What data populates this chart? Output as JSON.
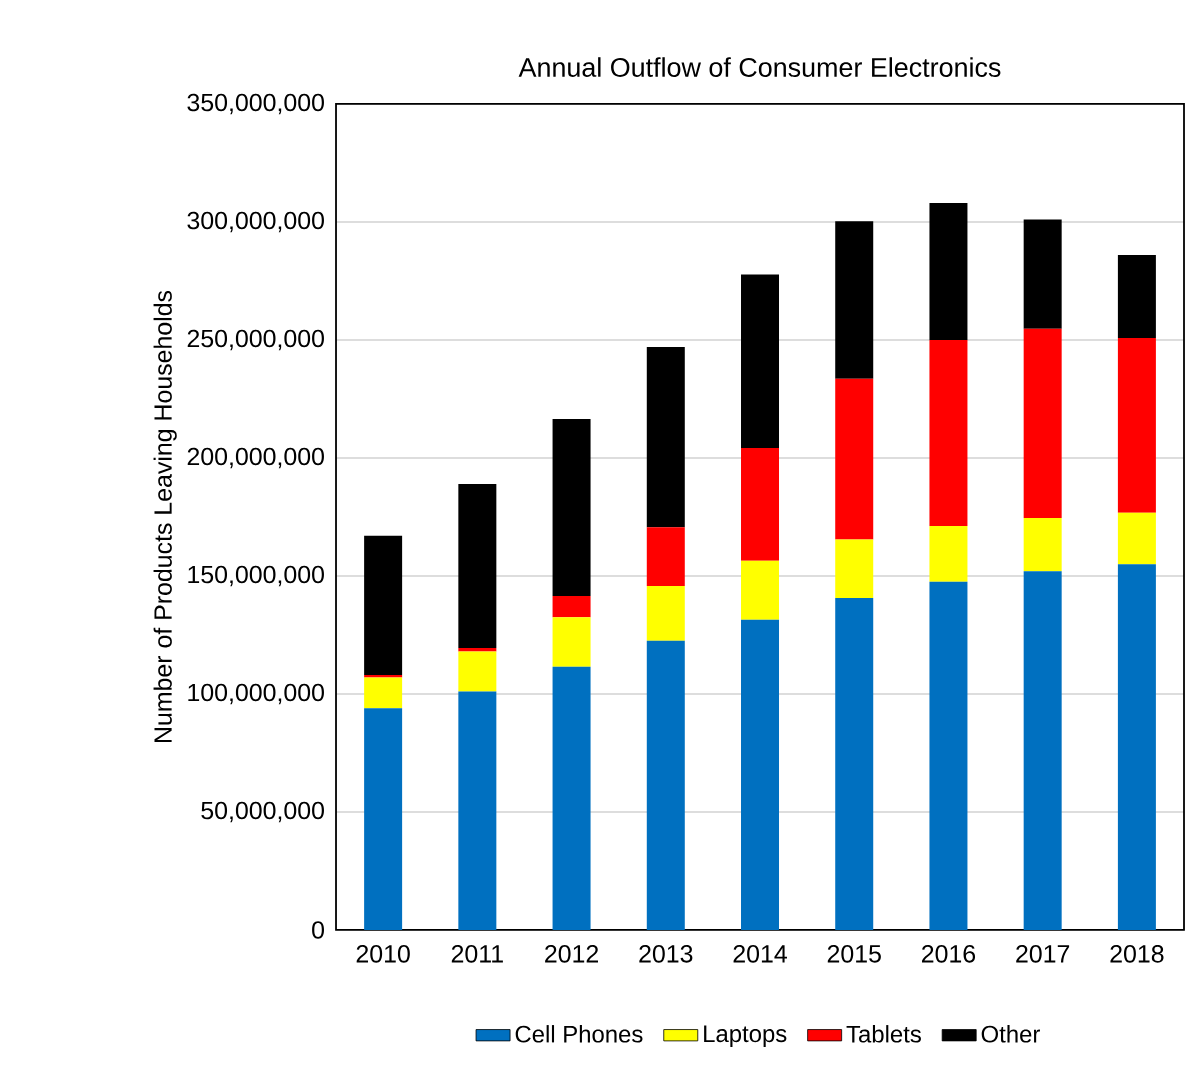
{
  "chart_data": {
    "type": "bar",
    "stacked": true,
    "title": "Annual Outflow of Consumer Electronics",
    "ylabel": "Number of Products Leaving Households",
    "categories": [
      "2010",
      "2011",
      "2012",
      "2013",
      "2014",
      "2015",
      "2016",
      "2017",
      "2018"
    ],
    "series": [
      {
        "name": "Cell Phones",
        "color": "#0070c0",
        "values": [
          94000000,
          101000000,
          111500000,
          122600000,
          131400000,
          140700000,
          147500000,
          152000000,
          155000000
        ]
      },
      {
        "name": "Laptops",
        "color": "#ffff00",
        "values": [
          13000000,
          17000000,
          21000000,
          23200000,
          25100000,
          24800000,
          23700000,
          22600000,
          21800000
        ]
      },
      {
        "name": "Tablets",
        "color": "#ff0000",
        "values": [
          1000000,
          1500000,
          9000000,
          24800000,
          47700000,
          68100000,
          78800000,
          80200000,
          74000000
        ]
      },
      {
        "name": "Other",
        "color": "#000000",
        "values": [
          59000000,
          69500000,
          75000000,
          76400000,
          73500000,
          66700000,
          58000000,
          46200000,
          35200000
        ]
      }
    ],
    "ylim": [
      0,
      350000000
    ],
    "yticks": [
      {
        "value": 0,
        "label": "0"
      },
      {
        "value": 50000000,
        "label": "50,000,000"
      },
      {
        "value": 100000000,
        "label": "100,000,000"
      },
      {
        "value": 150000000,
        "label": "150,000,000"
      },
      {
        "value": 200000000,
        "label": "200,000,000"
      },
      {
        "value": 250000000,
        "label": "250,000,000"
      },
      {
        "value": 300000000,
        "label": "300,000,000"
      },
      {
        "value": 350000000,
        "label": "350,000,000"
      }
    ],
    "grid": "y",
    "legend": "bottom"
  }
}
